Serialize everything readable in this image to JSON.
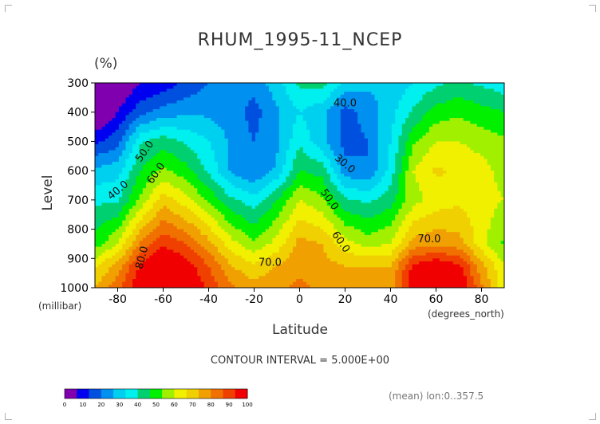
{
  "chart_data": {
    "type": "heatmap",
    "title": "RHUM_1995-11_NCEP",
    "units": "(%)",
    "xlabel": "Latitude",
    "ylabel": "Level",
    "x_unit_label": "(degrees_north)",
    "y_unit_label": "(millibar)",
    "xlim": [
      -90,
      90
    ],
    "ylim": [
      1000,
      300
    ],
    "x_ticks": [
      -80,
      -60,
      -40,
      -20,
      0,
      20,
      40,
      60,
      80
    ],
    "x_tick_labels": [
      "-80",
      "-60",
      "-40",
      "-20",
      "0",
      "20",
      "40",
      "60",
      "80"
    ],
    "y_ticks": [
      300,
      400,
      500,
      600,
      700,
      800,
      900,
      1000
    ],
    "y_tick_labels": [
      "300",
      "400",
      "500",
      "600",
      "700",
      "800",
      "900",
      "1000"
    ],
    "contour_interval_text": "CONTOUR INTERVAL = 5.000E+00",
    "subtitle_right": "(mean) lon:0..357.5",
    "grid": false,
    "legend": "bottom-left colorbar",
    "latitudes": [
      -90,
      -80,
      -70,
      -60,
      -50,
      -40,
      -30,
      -20,
      -10,
      0,
      10,
      20,
      30,
      40,
      50,
      60,
      70,
      80,
      90
    ],
    "levels": [
      1000,
      925,
      850,
      700,
      600,
      500,
      400,
      300
    ],
    "values": [
      [
        70,
        78,
        90,
        98,
        92,
        84,
        76,
        72,
        74,
        76,
        74,
        72,
        70,
        72,
        90,
        96,
        92,
        76,
        62
      ],
      [
        64,
        72,
        86,
        92,
        88,
        80,
        70,
        66,
        70,
        74,
        72,
        70,
        70,
        70,
        86,
        90,
        86,
        72,
        60
      ],
      [
        52,
        60,
        76,
        84,
        80,
        72,
        62,
        56,
        62,
        72,
        70,
        62,
        58,
        60,
        72,
        74,
        72,
        62,
        54
      ],
      [
        44,
        44,
        56,
        68,
        62,
        54,
        46,
        42,
        50,
        60,
        56,
        46,
        44,
        48,
        58,
        62,
        64,
        62,
        60
      ],
      [
        36,
        38,
        50,
        56,
        52,
        44,
        34,
        30,
        36,
        50,
        48,
        32,
        30,
        42,
        60,
        66,
        64,
        62,
        58
      ],
      [
        24,
        28,
        44,
        48,
        44,
        40,
        34,
        30,
        34,
        44,
        36,
        28,
        30,
        40,
        54,
        60,
        60,
        58,
        56
      ],
      [
        12,
        20,
        28,
        32,
        34,
        34,
        32,
        28,
        34,
        40,
        36,
        28,
        32,
        38,
        46,
        52,
        54,
        52,
        50
      ],
      [
        6,
        14,
        20,
        22,
        26,
        30,
        34,
        32,
        38,
        46,
        48,
        38,
        36,
        36,
        40,
        44,
        46,
        44,
        42
      ]
    ],
    "contour_labels": [
      "40.0",
      "30.0",
      "50.0",
      "60.0",
      "40.0",
      "50.0",
      "60.0",
      "70.0",
      "70.0",
      "80.0"
    ],
    "colorbar_ticks": [
      "0",
      "10",
      "20",
      "30",
      "40",
      "50",
      "60",
      "70",
      "80",
      "90",
      "100"
    ],
    "colors": [
      "#8000b0",
      "#0000f0",
      "#0050e0",
      "#0090f0",
      "#00d0f0",
      "#00f0f0",
      "#00d070",
      "#00f000",
      "#a0f000",
      "#f0f000",
      "#f0d000",
      "#f0a000",
      "#f07000",
      "#f04000",
      "#f00000"
    ]
  }
}
